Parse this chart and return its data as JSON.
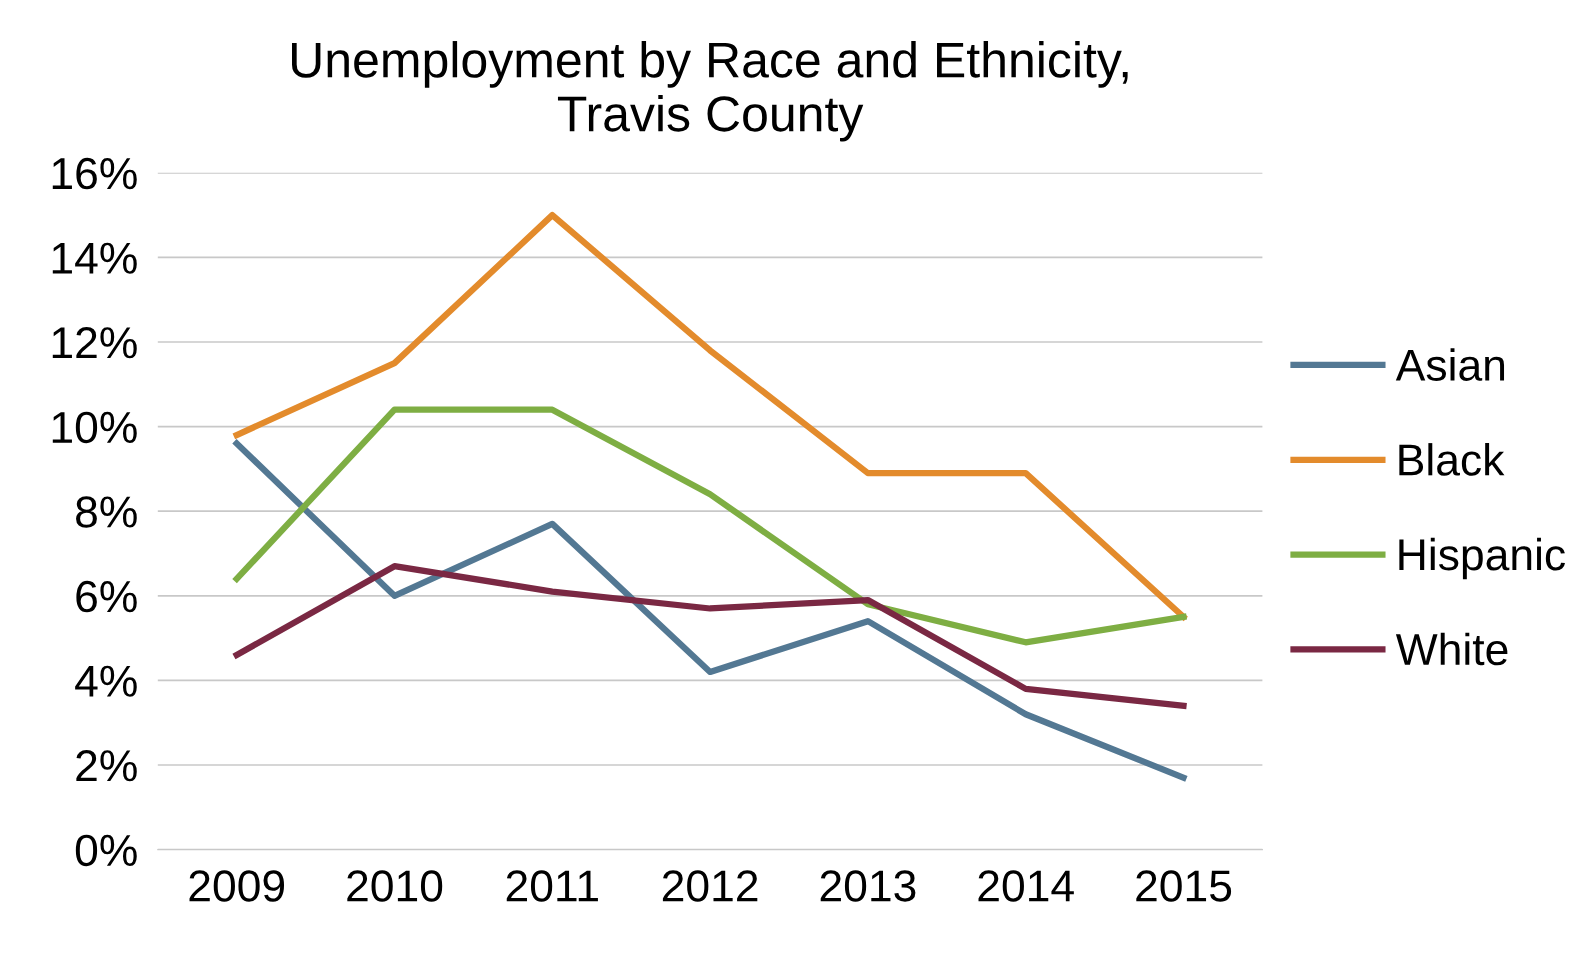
{
  "chart_data": {
    "type": "line",
    "title": "Unemployment by Race and Ethnicity,\nTravis County",
    "categories": [
      "2009",
      "2010",
      "2011",
      "2012",
      "2013",
      "2014",
      "2015"
    ],
    "series": [
      {
        "name": "Asian",
        "color": "#537893",
        "values": [
          9.6,
          6.0,
          7.7,
          4.2,
          5.4,
          3.2,
          1.7
        ]
      },
      {
        "name": "Black",
        "color": "#e38b2c",
        "values": [
          9.8,
          11.5,
          15.0,
          11.8,
          8.9,
          8.9,
          5.5
        ]
      },
      {
        "name": "Hispanic",
        "color": "#7eae43",
        "values": [
          6.4,
          10.4,
          10.4,
          8.4,
          5.8,
          4.9,
          5.5
        ]
      },
      {
        "name": "White",
        "color": "#7a2843",
        "values": [
          4.6,
          6.7,
          6.1,
          5.7,
          5.9,
          3.8,
          3.4
        ]
      }
    ],
    "ylim": [
      0,
      16
    ],
    "yticks": [
      {
        "value": 0,
        "label": "0%"
      },
      {
        "value": 2,
        "label": "2%"
      },
      {
        "value": 4,
        "label": "4%"
      },
      {
        "value": 6,
        "label": "6%"
      },
      {
        "value": 8,
        "label": "8%"
      },
      {
        "value": 10,
        "label": "10%"
      },
      {
        "value": 12,
        "label": "12%"
      },
      {
        "value": 14,
        "label": "14%"
      },
      {
        "value": 16,
        "label": "16%"
      }
    ],
    "grid": "y",
    "legend": "right",
    "marker": "none",
    "line_style": "solid"
  }
}
